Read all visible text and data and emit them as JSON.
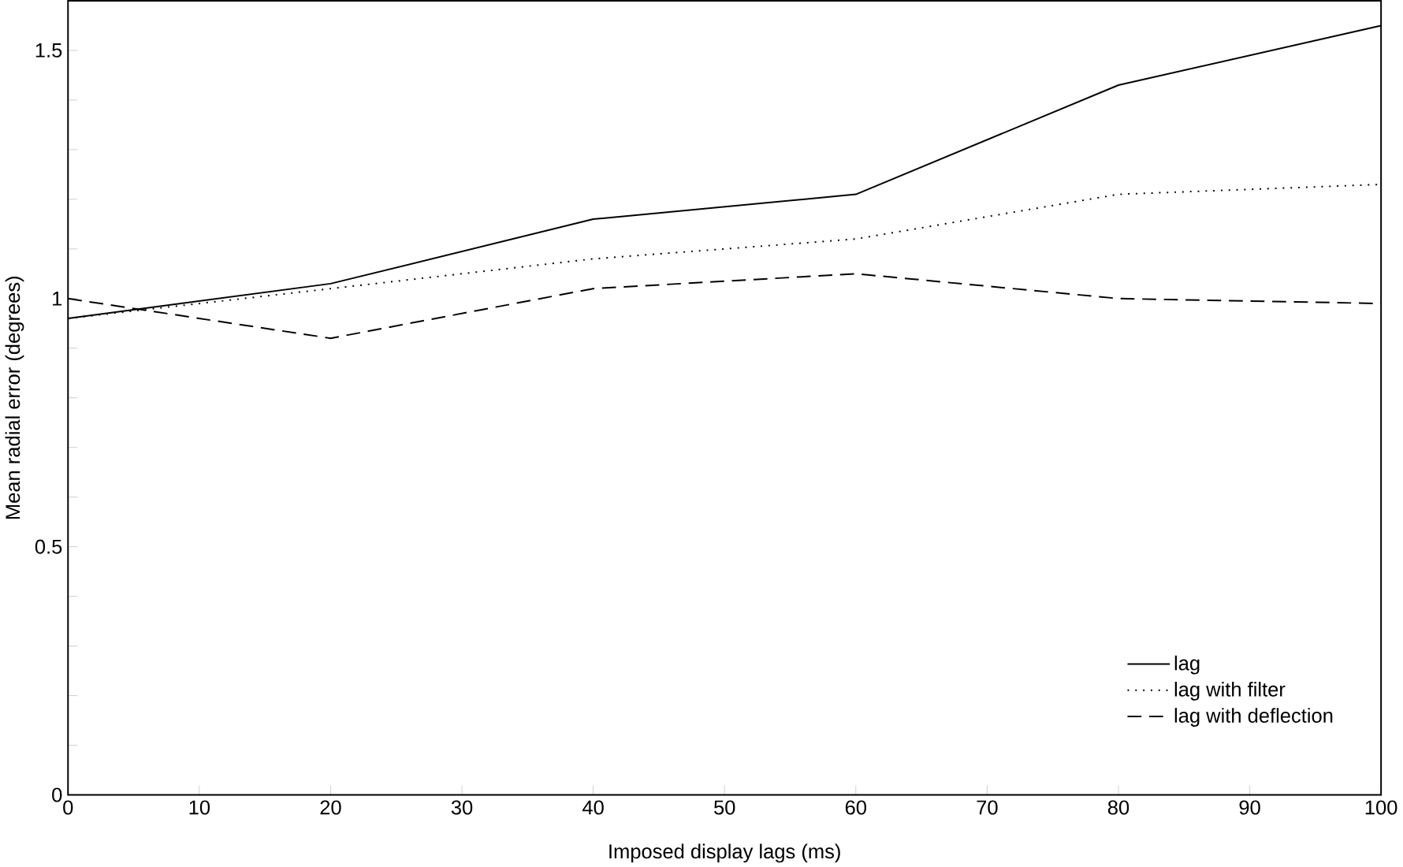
{
  "chart_data": {
    "type": "line",
    "xlabel": "Imposed display lags (ms)",
    "ylabel": "Mean radial error (degrees)",
    "x": [
      0,
      20,
      40,
      60,
      80,
      100
    ],
    "series": [
      {
        "name": "lag",
        "color": "#000000",
        "line_style": "solid",
        "values": [
          0.96,
          1.03,
          1.16,
          1.21,
          1.43,
          1.55
        ]
      },
      {
        "name": "lag with filter",
        "color": "#000000",
        "line_style": "dotted",
        "values": [
          0.96,
          1.02,
          1.08,
          1.12,
          1.21,
          1.23
        ]
      },
      {
        "name": "lag with deflection",
        "color": "#000000",
        "line_style": "dashed",
        "values": [
          1.0,
          0.92,
          1.02,
          1.05,
          1.0,
          0.99
        ]
      }
    ],
    "xlim": [
      0,
      100
    ],
    "ylim": [
      0,
      1.6
    ],
    "xticks": [
      0,
      10,
      20,
      30,
      40,
      50,
      60,
      70,
      80,
      90,
      100
    ],
    "yticks": [
      0,
      {
        "value": 0.1,
        "label": null
      },
      {
        "value": 0.2,
        "label": null
      },
      {
        "value": 0.3,
        "label": null
      },
      {
        "value": 0.4,
        "label": null
      },
      0.5,
      {
        "value": 0.6,
        "label": null
      },
      {
        "value": 0.7,
        "label": null
      },
      {
        "value": 0.8,
        "label": null
      },
      {
        "value": 0.9,
        "label": null
      },
      1,
      {
        "value": 1.1,
        "label": null
      },
      {
        "value": 1.2,
        "label": null
      },
      {
        "value": 1.3,
        "label": null
      },
      {
        "value": 1.4,
        "label": null
      },
      1.5
    ],
    "legend": "bottom right",
    "grid": false
  }
}
